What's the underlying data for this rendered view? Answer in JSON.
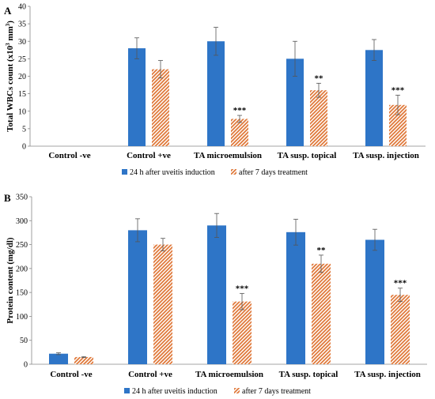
{
  "colors": {
    "series1": "#2E75C7",
    "series2": "#E07A3C"
  },
  "chart_data": [
    {
      "type": "bar",
      "panel": "A",
      "categories": [
        "Control -ve",
        "Control +ve",
        "TA microemulsion",
        "TA susp. topical",
        "TA susp. injection"
      ],
      "ylabel_pre": "Total WBCs count (x10",
      "ylabel_sup": "3",
      "ylabel_post": " mm",
      "ylabel_sup2": "3",
      "ylabel_end": ")",
      "ylim": [
        0,
        40
      ],
      "yticks": [
        0,
        5,
        10,
        15,
        20,
        25,
        30,
        35,
        40
      ],
      "series": [
        {
          "name": "24 h after uveitis induction",
          "values": [
            0,
            28,
            30,
            25,
            27.5
          ],
          "errors": [
            0,
            3,
            4,
            5,
            3
          ],
          "sig": [
            "",
            "",
            "",
            "",
            ""
          ]
        },
        {
          "name": "after 7 days treatment",
          "values": [
            0,
            22,
            7.8,
            16,
            11.8
          ],
          "errors": [
            0,
            2.5,
            1,
            2,
            2.8
          ],
          "sig": [
            "",
            "",
            "***",
            "**",
            "***"
          ]
        }
      ]
    },
    {
      "type": "bar",
      "panel": "B",
      "categories": [
        "Control -ve",
        "Control +ve",
        "TA microemulsion",
        "TA susp. topical",
        "TA susp. injection"
      ],
      "ylabel": "Protein content (mg/dl)",
      "ylim": [
        0,
        350
      ],
      "yticks": [
        0,
        50,
        100,
        150,
        200,
        250,
        300,
        350
      ],
      "series": [
        {
          "name": "24 h after uveitis induction",
          "values": [
            22,
            280,
            290,
            276,
            260
          ],
          "errors": [
            2,
            24,
            25,
            27,
            22
          ],
          "sig": [
            "",
            "",
            "",
            "",
            ""
          ]
        },
        {
          "name": "after 7 days treatment",
          "values": [
            15,
            250,
            131,
            210,
            145
          ],
          "errors": [
            1,
            13,
            17,
            18,
            14
          ],
          "sig": [
            "",
            "",
            "***",
            "**",
            "***"
          ]
        }
      ]
    }
  ]
}
